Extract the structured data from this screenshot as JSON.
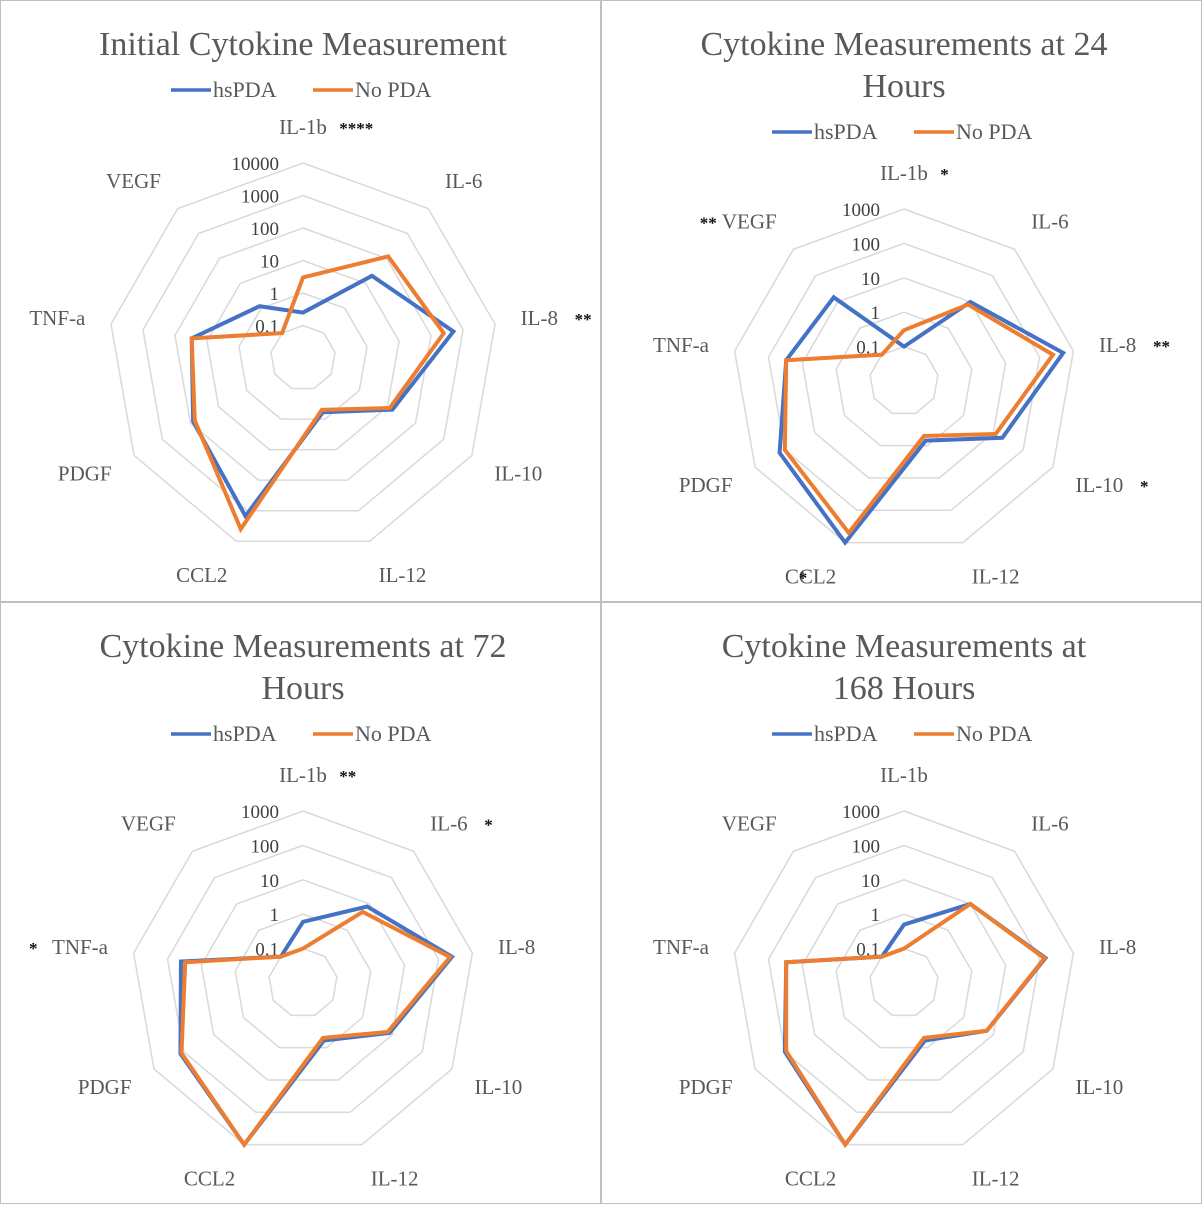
{
  "colors": {
    "hsPDA": "#4472C4",
    "No PDA": "#ED7D31",
    "grid": "#d9d9d9",
    "text": "#595959"
  },
  "chart_data": [
    {
      "type": "radar",
      "title": "Initial Cytokine Measurement",
      "title_lines": [
        "Initial Cytokine Measurement"
      ],
      "scale": "log",
      "ticks": [
        "0.1",
        "1",
        "10",
        "100",
        "1000",
        "10000"
      ],
      "categories": [
        "IL-1b",
        "IL-6",
        "IL-8",
        "IL-10",
        "IL-12",
        "CCL2",
        "PDGF",
        "TNF-a",
        "VEGF"
      ],
      "significance": {
        "IL-1b": "****",
        "IL-8": "**"
      },
      "series": [
        {
          "name": "hsPDA",
          "values": [
            0.25,
            20,
            500,
            15,
            0.6,
            1500,
            80,
            30,
            1.2
          ]
        },
        {
          "name": "No PDA",
          "values": [
            3,
            120,
            250,
            12,
            0.5,
            4000,
            70,
            30,
            0.1
          ]
        }
      ]
    },
    {
      "type": "radar",
      "title": "Cytokine Measurements at 24 Hours",
      "title_lines": [
        "Cytokine Measurements at 24",
        "Hours"
      ],
      "scale": "log",
      "ticks": [
        "0.1",
        "1",
        "10",
        "100",
        "1000"
      ],
      "categories": [
        "IL-1b",
        "IL-6",
        "IL-8",
        "IL-10",
        "IL-12",
        "CCL2",
        "PDGF",
        "TNF-a",
        "VEGF"
      ],
      "significance": {
        "IL-1b": "*",
        "IL-8": "**",
        "IL-10": "*",
        "CCL2": "*",
        "VEGF": "**"
      },
      "series": [
        {
          "name": "hsPDA",
          "values": [
            0.1,
            10,
            500,
            20,
            0.7,
            1500,
            150,
            30,
            15
          ]
        },
        {
          "name": "No PDA",
          "values": [
            0.3,
            8,
            250,
            12,
            0.5,
            500,
            100,
            30,
            0.1
          ]
        }
      ]
    },
    {
      "type": "radar",
      "title": "Cytokine Measurements at 72 Hours",
      "title_lines": [
        "Cytokine Measurements at 72",
        "Hours"
      ],
      "scale": "log",
      "ticks": [
        "0.1",
        "1",
        "10",
        "100",
        "1000"
      ],
      "categories": [
        "IL-1b",
        "IL-6",
        "IL-8",
        "IL-10",
        "IL-12",
        "CCL2",
        "PDGF",
        "TNF-a",
        "VEGF"
      ],
      "significance": {
        "IL-1b": "**",
        "IL-6": "*",
        "TNF-a": "*"
      },
      "series": [
        {
          "name": "hsPDA",
          "values": [
            0.6,
            8,
            250,
            8,
            0.6,
            1200,
            130,
            40,
            0.1
          ]
        },
        {
          "name": "No PDA",
          "values": [
            0.1,
            5,
            220,
            7,
            0.5,
            1000,
            120,
            30,
            0.1
          ]
        }
      ]
    },
    {
      "type": "radar",
      "title": "Cytokine Measurements at 168 Hours",
      "title_lines": [
        "Cytokine Measurements at",
        "168 Hours"
      ],
      "scale": "log",
      "ticks": [
        "0.1",
        "1",
        "10",
        "100",
        "1000"
      ],
      "categories": [
        "IL-1b",
        "IL-6",
        "IL-8",
        "IL-10",
        "IL-12",
        "CCL2",
        "PDGF",
        "TNF-a",
        "VEGF"
      ],
      "significance": {},
      "series": [
        {
          "name": "hsPDA",
          "values": [
            0.5,
            10,
            150,
            6,
            0.6,
            1000,
            100,
            30,
            0.1
          ]
        },
        {
          "name": "No PDA",
          "values": [
            0.1,
            10,
            140,
            6,
            0.5,
            1000,
            90,
            30,
            0.1
          ]
        }
      ]
    }
  ]
}
